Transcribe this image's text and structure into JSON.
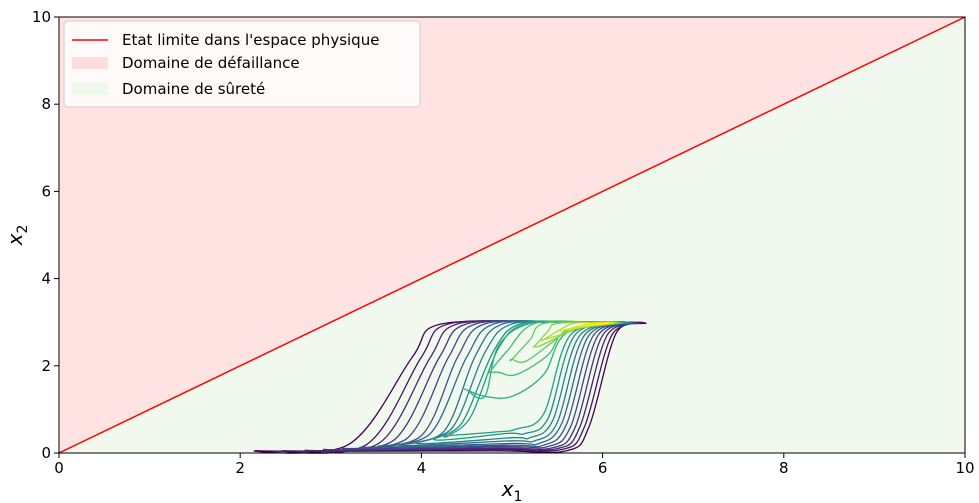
{
  "chart_data": {
    "type": "line",
    "title": "",
    "xlabel": "x",
    "xlabel_sub": "1",
    "ylabel": "x",
    "ylabel_sub": "2",
    "xlim": [
      0,
      10
    ],
    "ylim": [
      0,
      10
    ],
    "xticks": [
      "0",
      "2",
      "4",
      "6",
      "8",
      "10"
    ],
    "yticks": [
      "0",
      "2",
      "4",
      "6",
      "8",
      "10"
    ],
    "grid": false,
    "legend_placement": "top-left",
    "legend": [
      {
        "label": "Etat limite dans l'espace physique",
        "kind": "line",
        "color": "#ff0000"
      },
      {
        "label": "Domaine de défaillance",
        "kind": "patch",
        "color": "#ffdddd"
      },
      {
        "label": "Domaine de sûreté",
        "kind": "patch",
        "color": "#eef9ea"
      }
    ],
    "limit_state": {
      "x": [
        0,
        10
      ],
      "y": [
        0,
        10
      ],
      "color": "#ff0000"
    },
    "regions": {
      "failure": {
        "polygon": [
          [
            0,
            0
          ],
          [
            10,
            10
          ],
          [
            0,
            10
          ]
        ],
        "color": "#ffe3e3"
      },
      "safe": {
        "polygon": [
          [
            0,
            0
          ],
          [
            10,
            0
          ],
          [
            10,
            10
          ]
        ],
        "color": "#f1f9ee"
      }
    },
    "contours": [
      {
        "color": "#440154",
        "left": [
          [
            2.2,
            0.05
          ],
          [
            3.2,
            0.2
          ],
          [
            3.9,
            2.2
          ],
          [
            4.2,
            2.95
          ],
          [
            5.4,
            3.0
          ]
        ],
        "right": [
          [
            6.45,
            2.98
          ],
          [
            6.15,
            2.75
          ],
          [
            5.85,
            0.6
          ],
          [
            5.6,
            0.05
          ],
          [
            4.8,
            0.05
          ]
        ]
      },
      {
        "color": "#471365",
        "left": [
          [
            2.5,
            0.05
          ],
          [
            3.4,
            0.2
          ],
          [
            4.0,
            2.2
          ],
          [
            4.3,
            2.96
          ],
          [
            5.4,
            3.0
          ]
        ],
        "right": [
          [
            6.42,
            2.98
          ],
          [
            6.1,
            2.7
          ],
          [
            5.8,
            0.6
          ],
          [
            5.55,
            0.08
          ],
          [
            4.8,
            0.08
          ]
        ]
      },
      {
        "color": "#482374",
        "left": [
          [
            2.75,
            0.06
          ],
          [
            3.55,
            0.25
          ],
          [
            4.1,
            2.2
          ],
          [
            4.4,
            2.96
          ],
          [
            5.4,
            3.0
          ]
        ],
        "right": [
          [
            6.4,
            2.98
          ],
          [
            6.05,
            2.7
          ],
          [
            5.75,
            0.6
          ],
          [
            5.5,
            0.1
          ],
          [
            4.8,
            0.1
          ]
        ]
      },
      {
        "color": "#46327e",
        "left": [
          [
            2.95,
            0.08
          ],
          [
            3.7,
            0.3
          ],
          [
            4.2,
            2.2
          ],
          [
            4.5,
            2.96
          ],
          [
            5.45,
            3.0
          ]
        ],
        "right": [
          [
            6.38,
            2.98
          ],
          [
            6.0,
            2.7
          ],
          [
            5.7,
            0.6
          ],
          [
            5.45,
            0.12
          ],
          [
            4.85,
            0.12
          ]
        ]
      },
      {
        "color": "#414487",
        "left": [
          [
            3.15,
            0.1
          ],
          [
            3.85,
            0.35
          ],
          [
            4.3,
            2.2
          ],
          [
            4.6,
            2.96
          ],
          [
            5.5,
            3.0
          ]
        ],
        "right": [
          [
            6.36,
            2.98
          ],
          [
            5.95,
            2.7
          ],
          [
            5.65,
            0.62
          ],
          [
            5.4,
            0.15
          ],
          [
            4.9,
            0.15
          ]
        ]
      },
      {
        "color": "#3b528b",
        "left": [
          [
            3.35,
            0.12
          ],
          [
            4.0,
            0.4
          ],
          [
            4.4,
            2.2
          ],
          [
            4.7,
            2.96
          ],
          [
            5.55,
            3.0
          ]
        ],
        "right": [
          [
            6.34,
            2.98
          ],
          [
            5.9,
            2.7
          ],
          [
            5.6,
            0.65
          ],
          [
            5.35,
            0.18
          ],
          [
            4.95,
            0.18
          ]
        ]
      },
      {
        "color": "#33638d",
        "left": [
          [
            3.55,
            0.15
          ],
          [
            4.1,
            0.45
          ],
          [
            4.5,
            2.2
          ],
          [
            4.8,
            2.96
          ],
          [
            5.6,
            3.0
          ]
        ],
        "right": [
          [
            6.32,
            2.98
          ],
          [
            5.85,
            2.7
          ],
          [
            5.55,
            0.68
          ],
          [
            5.3,
            0.22
          ],
          [
            5.0,
            0.22
          ]
        ]
      },
      {
        "color": "#2c728e",
        "left": [
          [
            3.75,
            0.18
          ],
          [
            4.25,
            0.5
          ],
          [
            4.6,
            2.25
          ],
          [
            4.9,
            2.96
          ],
          [
            5.65,
            3.0
          ]
        ],
        "right": [
          [
            6.3,
            2.98
          ],
          [
            5.8,
            2.7
          ],
          [
            5.5,
            0.7
          ],
          [
            5.25,
            0.28
          ],
          [
            5.0,
            0.28
          ]
        ]
      },
      {
        "color": "#26828e",
        "left": [
          [
            3.95,
            0.22
          ],
          [
            4.35,
            0.6
          ],
          [
            4.7,
            2.3
          ],
          [
            5.0,
            2.96
          ],
          [
            5.7,
            3.0
          ]
        ],
        "right": [
          [
            6.28,
            2.98
          ],
          [
            5.75,
            2.7
          ],
          [
            5.45,
            0.75
          ],
          [
            5.2,
            0.35
          ],
          [
            5.0,
            0.35
          ]
        ]
      },
      {
        "color": "#21918c",
        "left": [
          [
            4.15,
            0.3
          ],
          [
            4.45,
            0.7
          ],
          [
            4.8,
            2.35
          ],
          [
            5.1,
            2.97
          ],
          [
            5.75,
            3.0
          ]
        ],
        "right": [
          [
            6.26,
            2.98
          ],
          [
            5.7,
            2.72
          ],
          [
            5.4,
            0.8
          ],
          [
            5.15,
            0.45
          ],
          [
            4.95,
            0.45
          ]
        ]
      },
      {
        "color": "#1fa088",
        "left": [
          [
            4.3,
            0.4
          ],
          [
            4.55,
            0.85
          ],
          [
            4.85,
            2.4
          ],
          [
            5.15,
            2.97
          ],
          [
            5.8,
            3.0
          ]
        ],
        "right": [
          [
            6.24,
            2.98
          ],
          [
            5.65,
            2.72
          ],
          [
            5.35,
            0.9
          ],
          [
            5.05,
            0.55
          ],
          [
            4.8,
            0.48
          ],
          [
            4.3,
            0.4
          ]
        ]
      },
      {
        "color": "#28ae80",
        "left": [
          [
            4.5,
            1.45
          ],
          [
            4.7,
            1.3
          ],
          [
            4.85,
            2.45
          ],
          [
            5.2,
            2.97
          ],
          [
            5.85,
            3.0
          ]
        ],
        "right": [
          [
            6.22,
            2.98
          ],
          [
            5.6,
            2.75
          ],
          [
            5.35,
            1.8
          ],
          [
            5.0,
            1.3
          ],
          [
            4.7,
            1.3
          ],
          [
            4.5,
            1.45
          ]
        ]
      },
      {
        "color": "#3fbc73",
        "left": [
          [
            4.75,
            1.85
          ],
          [
            4.95,
            2.35
          ],
          [
            5.25,
            2.97
          ],
          [
            5.9,
            3.0
          ]
        ],
        "right": [
          [
            6.2,
            2.98
          ],
          [
            5.6,
            2.8
          ],
          [
            5.4,
            2.25
          ],
          [
            5.05,
            1.8
          ],
          [
            4.85,
            1.85
          ],
          [
            4.75,
            1.85
          ]
        ]
      },
      {
        "color": "#5ec962",
        "left": [
          [
            5.0,
            2.15
          ],
          [
            5.2,
            2.6
          ],
          [
            5.35,
            2.97
          ],
          [
            5.95,
            3.0
          ]
        ],
        "right": [
          [
            6.18,
            2.98
          ],
          [
            5.65,
            2.82
          ],
          [
            5.45,
            2.55
          ],
          [
            5.15,
            2.1
          ],
          [
            5.0,
            2.15
          ]
        ]
      },
      {
        "color": "#84d44b",
        "left": [
          [
            5.25,
            2.45
          ],
          [
            5.4,
            2.8
          ],
          [
            5.5,
            2.97
          ],
          [
            6.0,
            3.0
          ]
        ],
        "right": [
          [
            6.15,
            2.98
          ],
          [
            5.7,
            2.85
          ],
          [
            5.5,
            2.65
          ],
          [
            5.3,
            2.45
          ],
          [
            5.25,
            2.45
          ]
        ]
      },
      {
        "color": "#addc30",
        "left": [
          [
            5.35,
            2.6
          ],
          [
            5.55,
            2.85
          ],
          [
            5.7,
            2.98
          ],
          [
            6.05,
            3.0
          ]
        ],
        "right": [
          [
            6.12,
            2.98
          ],
          [
            5.75,
            2.88
          ],
          [
            5.55,
            2.72
          ],
          [
            5.35,
            2.6
          ]
        ]
      },
      {
        "color": "#d8e219",
        "left": [
          [
            5.55,
            2.8
          ],
          [
            5.75,
            2.92
          ],
          [
            5.95,
            2.99
          ],
          [
            6.08,
            3.0
          ]
        ],
        "right": [
          [
            6.1,
            2.98
          ],
          [
            5.85,
            2.92
          ],
          [
            5.65,
            2.84
          ],
          [
            5.55,
            2.8
          ]
        ]
      },
      {
        "color": "#fde725",
        "left": [
          [
            5.8,
            2.92
          ],
          [
            5.95,
            2.96
          ],
          [
            6.05,
            2.99
          ]
        ],
        "right": [
          [
            6.07,
            2.98
          ],
          [
            5.95,
            2.95
          ],
          [
            5.85,
            2.93
          ],
          [
            5.8,
            2.92
          ]
        ]
      }
    ]
  }
}
